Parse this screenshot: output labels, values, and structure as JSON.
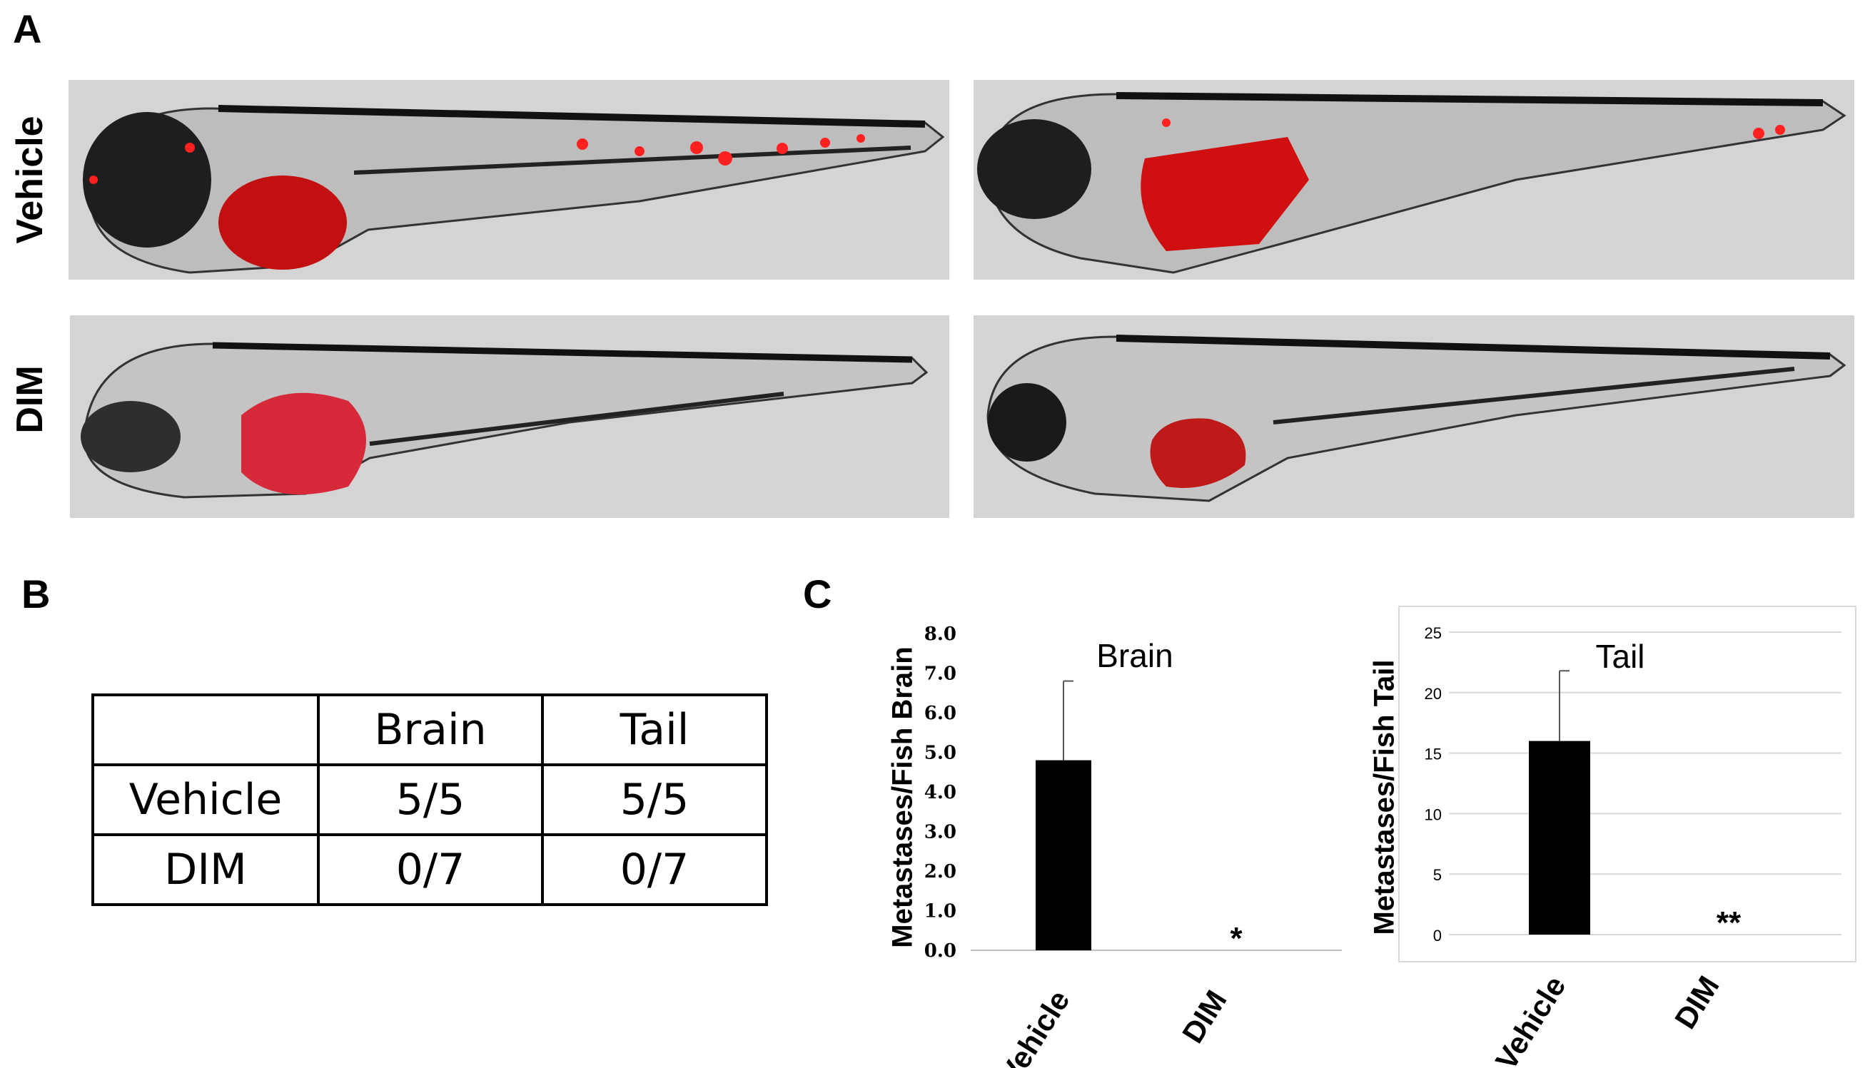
{
  "panels": {
    "a": "A",
    "b": "B",
    "c": "C"
  },
  "panel_a": {
    "rows": [
      "Vehicle",
      "DIM"
    ],
    "images": [
      {
        "row": "Vehicle",
        "col": 1,
        "description": "zebrafish larva red fluorescence"
      },
      {
        "row": "Vehicle",
        "col": 2,
        "description": "zebrafish larva red fluorescence"
      },
      {
        "row": "DIM",
        "col": 1,
        "description": "zebrafish larva red fluorescence"
      },
      {
        "row": "DIM",
        "col": 2,
        "description": "zebrafish larva red fluorescence"
      }
    ]
  },
  "panel_b": {
    "headers": [
      "",
      "Brain",
      "Tail"
    ],
    "rows": [
      [
        "Vehicle",
        "5/5",
        "5/5"
      ],
      [
        "DIM",
        "0/7",
        "0/7"
      ]
    ]
  },
  "chart_data": [
    {
      "type": "bar",
      "title": "Brain",
      "ylabel": "Metastases/Fish Brain",
      "categories": [
        "Vehicle",
        "DIM"
      ],
      "values": [
        4.8,
        0
      ],
      "errors": [
        2.0,
        0
      ],
      "annotations": [
        "",
        "*"
      ],
      "ylim": [
        0,
        8
      ],
      "yticks": [
        "0.0",
        "1.0",
        "2.0",
        "3.0",
        "4.0",
        "5.0",
        "6.0",
        "7.0",
        "8.0"
      ],
      "grid": false,
      "bar_color": "#000000"
    },
    {
      "type": "bar",
      "title": "Tail",
      "ylabel": "Metastases/Fish Tail",
      "categories": [
        "Vehicle",
        "DIM"
      ],
      "values": [
        16,
        0
      ],
      "errors": [
        5.8,
        0
      ],
      "annotations": [
        "",
        "**"
      ],
      "ylim": [
        0,
        25
      ],
      "yticks": [
        "0",
        "5",
        "10",
        "15",
        "20",
        "25"
      ],
      "grid": true,
      "bar_color": "#000000"
    }
  ]
}
